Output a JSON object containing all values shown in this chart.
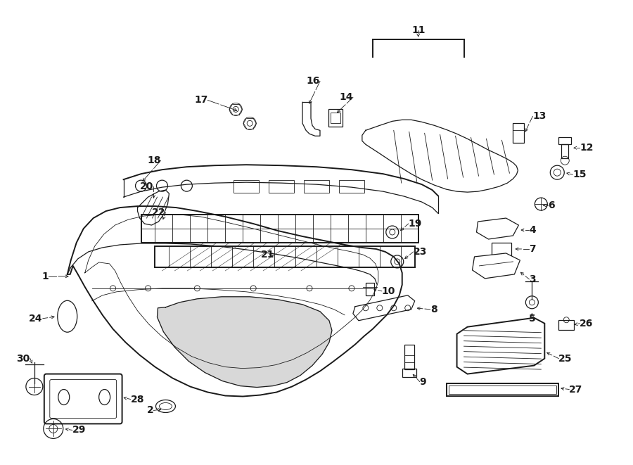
{
  "bg_color": "#ffffff",
  "line_color": "#1a1a1a",
  "lw_main": 1.4,
  "lw_med": 0.9,
  "lw_thin": 0.6,
  "fig_width": 9.0,
  "fig_height": 6.61,
  "dpi": 100
}
